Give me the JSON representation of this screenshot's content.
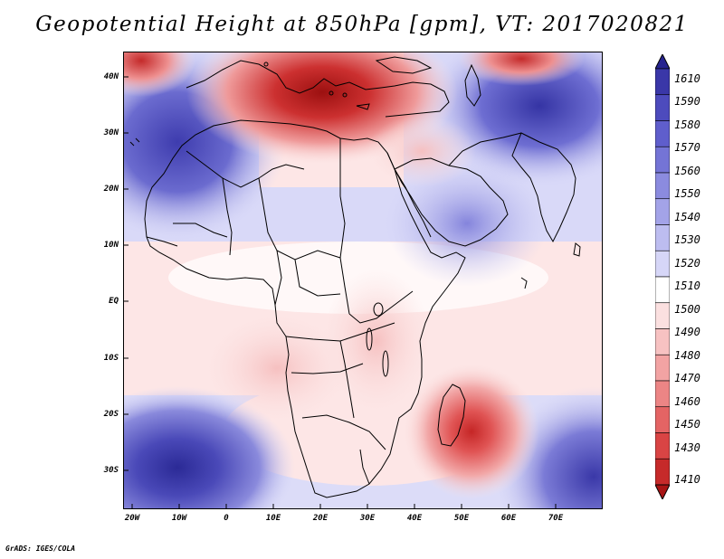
{
  "title": "Geopotential Height at 850hPa [gpm], VT: 2017020821",
  "footer": "GrADS: IGES/COLA",
  "map": {
    "variable": "Geopotential Height",
    "level": "850hPa",
    "units": "gpm",
    "valid_time": "2017020821",
    "lat_labels": [
      "40N",
      "30N",
      "20N",
      "10N",
      "EQ",
      "10S",
      "20S",
      "30S"
    ],
    "lon_labels": [
      "20W",
      "10W",
      "0",
      "10E",
      "20E",
      "30E",
      "40E",
      "50E",
      "60E",
      "70E"
    ]
  },
  "colorbar": {
    "labels": [
      "1610",
      "1590",
      "1580",
      "1570",
      "1560",
      "1550",
      "1540",
      "1530",
      "1520",
      "1510",
      "1500",
      "1490",
      "1480",
      "1470",
      "1460",
      "1450",
      "1430",
      "1410"
    ],
    "colors": [
      "#26238f",
      "#3a37a8",
      "#4d4bbd",
      "#5f5ecc",
      "#7474d6",
      "#8b8bdf",
      "#a3a3e8",
      "#bdbdf0",
      "#d6d6f7",
      "#ffffff",
      "#fbe0e0",
      "#f7c2c2",
      "#f2a3a3",
      "#ec8585",
      "#e46464",
      "#d94444",
      "#c62a2a",
      "#a81414"
    ]
  }
}
